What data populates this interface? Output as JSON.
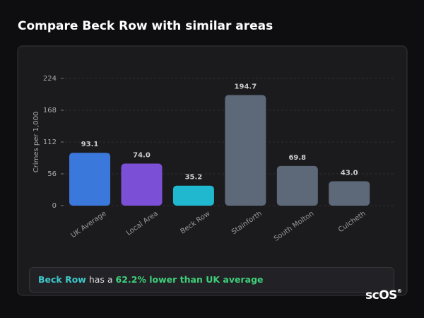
{
  "chart_data": {
    "type": "bar",
    "title": "Compare Beck Row with similar areas",
    "y_label": "Crimes per 1,000",
    "categories": [
      "UK Average",
      "Local Area",
      "Beck Row",
      "Stainforth",
      "South Molton",
      "Culcheth"
    ],
    "values": [
      93.1,
      74.0,
      35.2,
      194.7,
      69.8,
      43.0
    ],
    "value_labels": [
      "93.1",
      "74.0",
      "35.2",
      "194.7",
      "69.8",
      "43.0"
    ],
    "colors": [
      "#3b78dc",
      "#7b4fd6",
      "#1fb8cf",
      "#5d6879",
      "#5d6879",
      "#5d6879"
    ],
    "ylim": [
      0,
      224
    ],
    "yticks": [
      0,
      56,
      112,
      168,
      224
    ],
    "grid": true
  },
  "footer": {
    "subject": "Beck Row",
    "middle": "has a",
    "highlight": "62.2% lower than UK average"
  },
  "logo": {
    "text": "scOS",
    "mark": "®"
  }
}
